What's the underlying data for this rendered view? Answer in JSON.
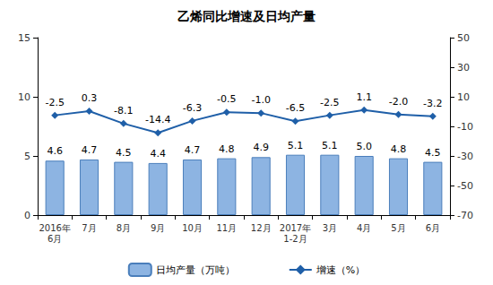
{
  "chart_data": {
    "type": "bar",
    "title": "乙烯同比增速及日均产量",
    "categories": [
      "2016年\n6月",
      "7月",
      "8月",
      "9月",
      "10月",
      "11月",
      "12月",
      "2017年\n1-2月",
      "3月",
      "4月",
      "5月",
      "6月"
    ],
    "series": [
      {
        "name": "日均产量（万吨）",
        "type": "bar",
        "color": "#8db4e2",
        "values": [
          4.6,
          4.7,
          4.5,
          4.4,
          4.7,
          4.8,
          4.9,
          5.1,
          5.1,
          5.0,
          4.8,
          4.5
        ],
        "value_labels": [
          "4.6",
          "4.7",
          "4.5",
          "4.4",
          "4.7",
          "4.8",
          "4.9",
          "5.1",
          "5.1",
          "5.0",
          "4.8",
          "4.5"
        ]
      },
      {
        "name": "增速（%）",
        "type": "line",
        "axis": "y2",
        "color": "#1f5fa8",
        "marker": "diamond",
        "values": [
          -2.5,
          0.3,
          -8.1,
          -14.4,
          -6.3,
          -0.5,
          -1.0,
          -6.5,
          -2.5,
          1.1,
          -2.0,
          -3.2
        ],
        "value_labels": [
          "-2.5",
          "0.3",
          "-8.1",
          "-14.4",
          "-6.3",
          "-0.5",
          "-1.0",
          "-6.5",
          "-2.5",
          "1.1",
          "-2.0",
          "-3.2"
        ]
      }
    ],
    "ylim": [
      0,
      15
    ],
    "yticks": [
      0,
      5,
      10,
      15
    ],
    "y2lim": [
      -70,
      50
    ],
    "y2ticks": [
      -70,
      -50,
      -30,
      -10,
      10,
      30,
      50
    ],
    "grid": false,
    "legend": "bottom",
    "data_labels": true
  }
}
